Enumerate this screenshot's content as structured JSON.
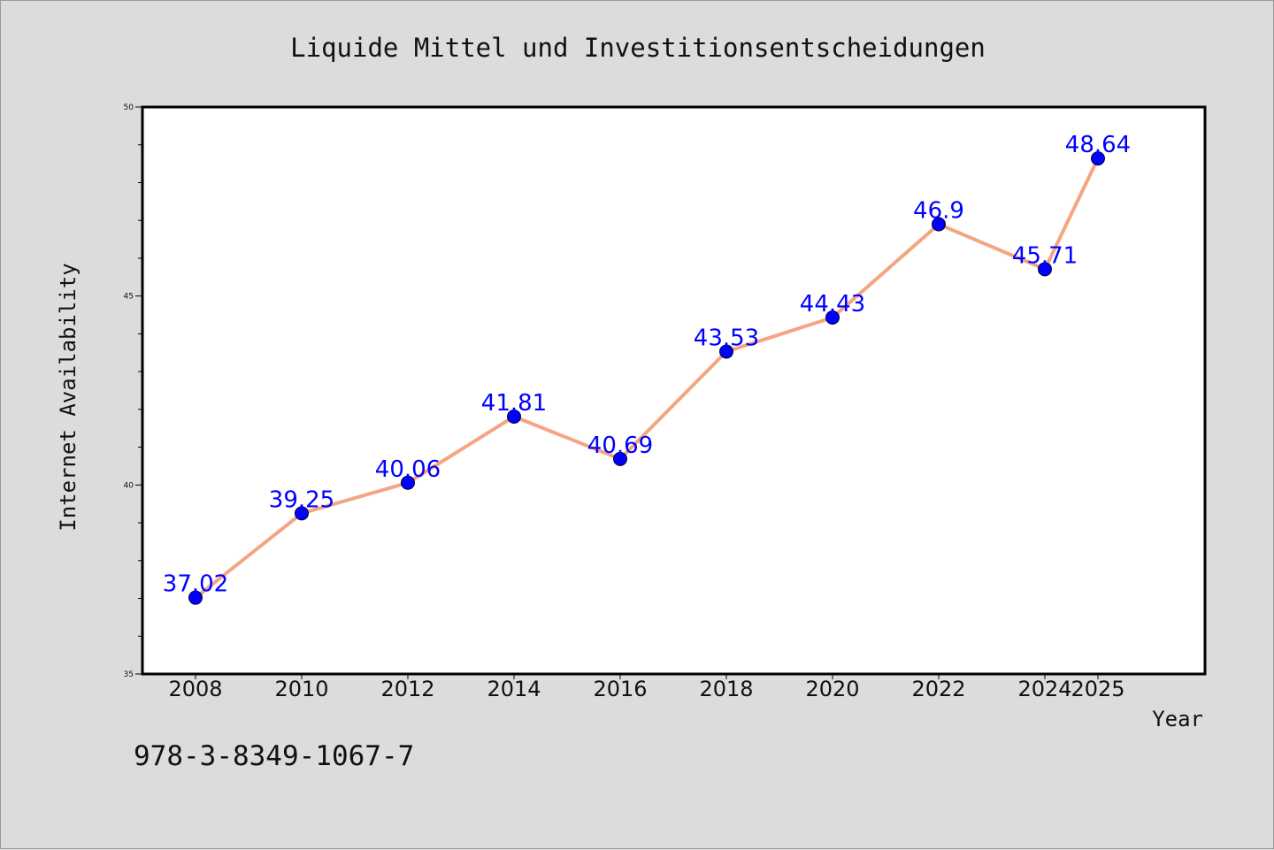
{
  "chart_data": {
    "type": "line",
    "title": "Liquide Mittel und Investitionsentscheidungen",
    "xlabel": "Year",
    "ylabel": "Internet Availability",
    "categories": [
      "2008",
      "2010",
      "2012",
      "2014",
      "2016",
      "2018",
      "2020",
      "2022",
      "2024",
      "2025"
    ],
    "values": [
      37.02,
      39.25,
      40.06,
      41.81,
      40.69,
      43.53,
      44.43,
      46.9,
      45.71,
      48.64
    ],
    "data_labels": [
      "37.02",
      "39.25",
      "40.06",
      "41.81",
      "40.69",
      "43.53",
      "44.43",
      "46.9",
      "45.71",
      "48.64"
    ],
    "ylim": [
      35,
      50
    ],
    "yticks": [
      "35",
      "40",
      "45",
      "50"
    ],
    "grid": false,
    "legend": "none",
    "line_color": "#f4a582",
    "marker_color": "#0000ff",
    "label_color": "#0000ff"
  },
  "footer": {
    "isbn": "978-3-8349-1067-7"
  }
}
